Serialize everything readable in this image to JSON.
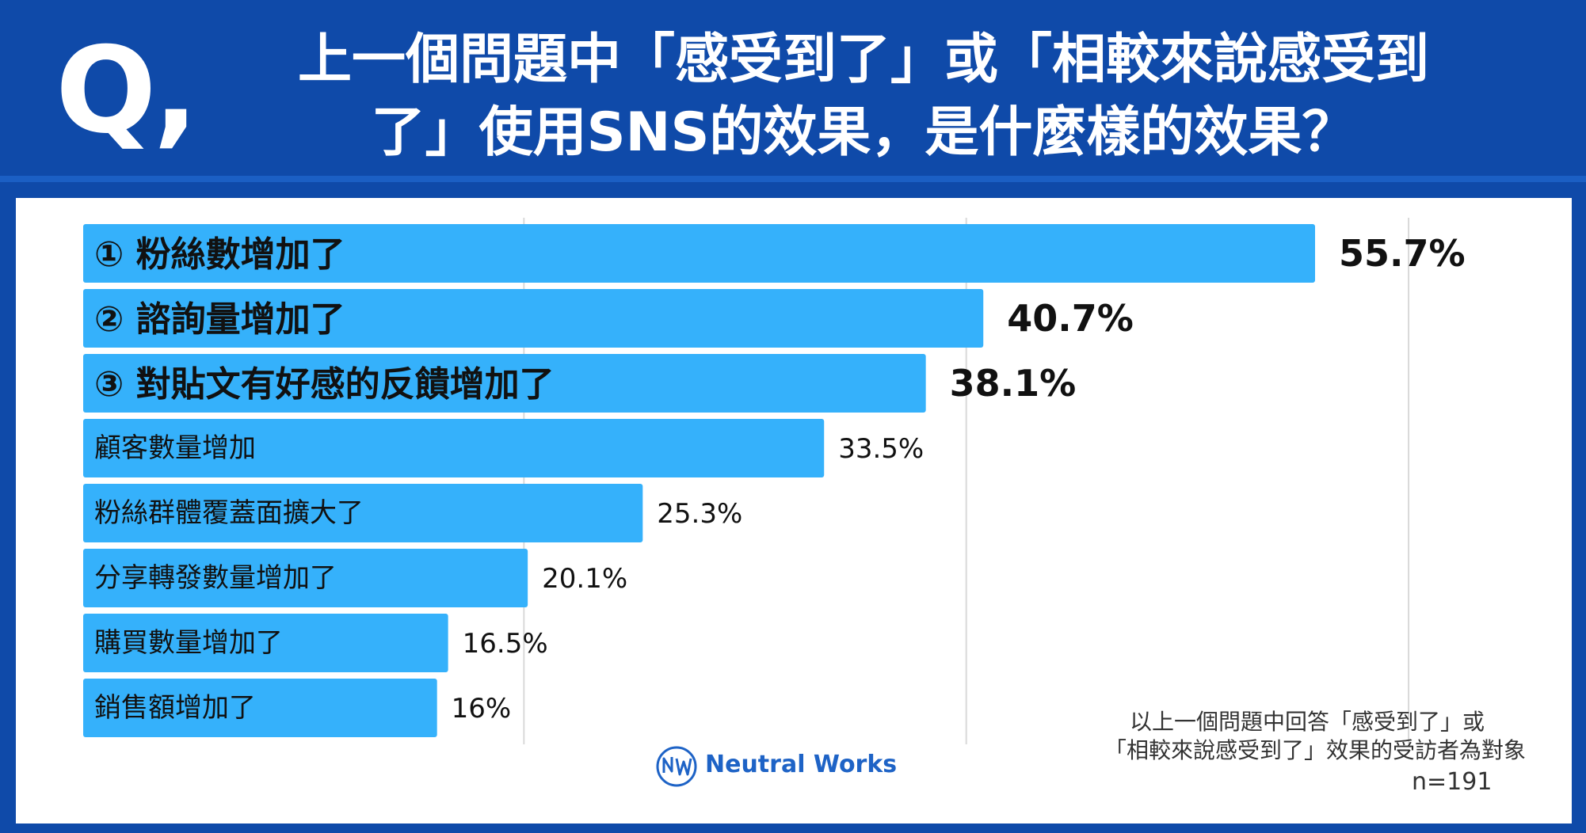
{
  "header": {
    "q_mark": "Q,",
    "title_line1": "上一個問題中「感受到了」或「相較來說感受到",
    "title_line2": "了」使用SNS的效果，是什麼樣的效果？"
  },
  "colors": {
    "header_bg": "#0f4aa9",
    "bar": "#35b1fb",
    "bar_text": "#111111",
    "gridline": "#d9d9d9"
  },
  "chart_data": {
    "type": "bar",
    "orientation": "horizontal",
    "categories": [
      "① 粉絲數增加了",
      "② 諮詢量增加了",
      "③ 對貼文有好感的反饋增加了",
      "顧客數量增加",
      "粉絲群體覆蓋面擴大了",
      "分享轉發數量增加了",
      "購買數量增加了",
      "銷售額增加了"
    ],
    "values": [
      55.7,
      40.7,
      38.1,
      33.5,
      25.3,
      20.1,
      16.5,
      16
    ],
    "value_labels": [
      "55.7%",
      "40.7%",
      "38.1%",
      "33.5%",
      "25.3%",
      "20.1%",
      "16.5%",
      "16%"
    ],
    "highlight_top": 3,
    "xlim": [
      0,
      60
    ],
    "grid": true
  },
  "footnote": {
    "line1": "以上一個問題中回答「感受到了」或",
    "line2": "「相較來說感受到了」效果的受訪者為對象",
    "sample": "n=191"
  },
  "logo": {
    "text": "Neutral Works",
    "icon": "neutral-works-logo-icon"
  }
}
